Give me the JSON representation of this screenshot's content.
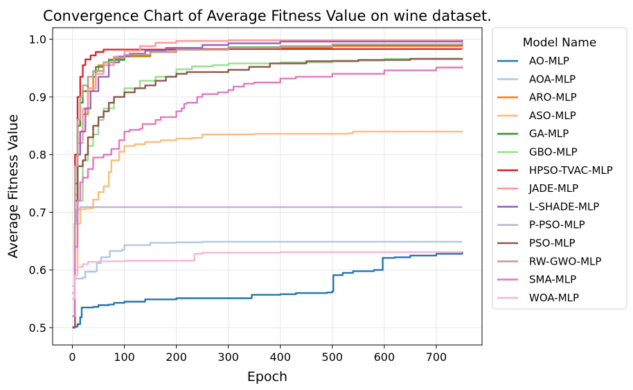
{
  "chart_data": {
    "type": "line",
    "title": "Convergence Chart of Average Fitness Value on wine dataset.",
    "xlabel": "Epoch",
    "ylabel": "Average Fitness Value",
    "xlim": [
      -38,
      788
    ],
    "ylim": [
      0.47,
      1.02
    ],
    "xticks": [
      0,
      100,
      200,
      300,
      400,
      500,
      600,
      700
    ],
    "yticks": [
      0.5,
      0.6,
      0.7,
      0.8,
      0.9,
      1.0
    ],
    "ytick_labels": [
      "0.5",
      "0.6",
      "0.7",
      "0.8",
      "0.9",
      "1.0"
    ],
    "grid": true,
    "legend": {
      "title": "Model Name",
      "position": "outside-right"
    },
    "series": [
      {
        "name": "AO-MLP",
        "color": "#1f77b4",
        "points": [
          [
            0,
            0.501
          ],
          [
            5,
            0.502
          ],
          [
            10,
            0.506
          ],
          [
            15,
            0.518
          ],
          [
            18,
            0.535
          ],
          [
            40,
            0.536
          ],
          [
            50,
            0.539
          ],
          [
            70,
            0.54
          ],
          [
            80,
            0.543
          ],
          [
            100,
            0.545
          ],
          [
            140,
            0.549
          ],
          [
            200,
            0.551
          ],
          [
            250,
            0.551
          ],
          [
            340,
            0.551
          ],
          [
            345,
            0.557
          ],
          [
            400,
            0.558
          ],
          [
            430,
            0.56
          ],
          [
            490,
            0.561
          ],
          [
            500,
            0.563
          ],
          [
            502,
            0.591
          ],
          [
            520,
            0.595
          ],
          [
            540,
            0.598
          ],
          [
            580,
            0.6
          ],
          [
            595,
            0.6
          ],
          [
            597,
            0.621
          ],
          [
            620,
            0.622
          ],
          [
            650,
            0.625
          ],
          [
            700,
            0.628
          ],
          [
            750,
            0.632
          ]
        ]
      },
      {
        "name": "AOA-MLP",
        "color": "#aec7e8",
        "points": [
          [
            0,
            0.572
          ],
          [
            5,
            0.585
          ],
          [
            20,
            0.587
          ],
          [
            25,
            0.597
          ],
          [
            45,
            0.598
          ],
          [
            47,
            0.612
          ],
          [
            55,
            0.622
          ],
          [
            70,
            0.623
          ],
          [
            72,
            0.633
          ],
          [
            95,
            0.635
          ],
          [
            100,
            0.643
          ],
          [
            150,
            0.647
          ],
          [
            200,
            0.648
          ],
          [
            250,
            0.649
          ],
          [
            750,
            0.649
          ]
        ]
      },
      {
        "name": "ARO-MLP",
        "color": "#ff7f0e",
        "points": [
          [
            0,
            0.55
          ],
          [
            5,
            0.7
          ],
          [
            10,
            0.8
          ],
          [
            15,
            0.84
          ],
          [
            20,
            0.87
          ],
          [
            30,
            0.91
          ],
          [
            40,
            0.945
          ],
          [
            50,
            0.955
          ],
          [
            70,
            0.965
          ],
          [
            100,
            0.97
          ],
          [
            150,
            0.978
          ],
          [
            200,
            0.982
          ],
          [
            300,
            0.985
          ],
          [
            500,
            0.988
          ],
          [
            750,
            0.99
          ]
        ]
      },
      {
        "name": "ASO-MLP",
        "color": "#ffbb78",
        "points": [
          [
            0,
            0.5
          ],
          [
            5,
            0.6
          ],
          [
            10,
            0.68
          ],
          [
            15,
            0.705
          ],
          [
            25,
            0.707
          ],
          [
            40,
            0.722
          ],
          [
            50,
            0.735
          ],
          [
            60,
            0.745
          ],
          [
            70,
            0.77
          ],
          [
            75,
            0.79
          ],
          [
            90,
            0.805
          ],
          [
            100,
            0.815
          ],
          [
            120,
            0.818
          ],
          [
            140,
            0.822
          ],
          [
            170,
            0.825
          ],
          [
            200,
            0.828
          ],
          [
            230,
            0.829
          ],
          [
            250,
            0.835
          ],
          [
            350,
            0.836
          ],
          [
            400,
            0.836
          ],
          [
            530,
            0.837
          ],
          [
            540,
            0.84
          ],
          [
            750,
            0.841
          ]
        ]
      },
      {
        "name": "GA-MLP",
        "color": "#2ca02c",
        "points": [
          [
            0,
            0.56
          ],
          [
            5,
            0.75
          ],
          [
            10,
            0.85
          ],
          [
            15,
            0.89
          ],
          [
            20,
            0.91
          ],
          [
            30,
            0.935
          ],
          [
            45,
            0.952
          ],
          [
            60,
            0.96
          ],
          [
            70,
            0.964
          ],
          [
            100,
            0.972
          ],
          [
            150,
            0.978
          ],
          [
            200,
            0.982
          ],
          [
            300,
            0.986
          ],
          [
            400,
            0.988
          ],
          [
            500,
            0.99
          ],
          [
            750,
            0.993
          ]
        ]
      },
      {
        "name": "GBO-MLP",
        "color": "#98df8a",
        "points": [
          [
            0,
            0.52
          ],
          [
            5,
            0.64
          ],
          [
            10,
            0.72
          ],
          [
            20,
            0.79
          ],
          [
            30,
            0.815
          ],
          [
            40,
            0.835
          ],
          [
            50,
            0.86
          ],
          [
            60,
            0.88
          ],
          [
            80,
            0.9
          ],
          [
            100,
            0.915
          ],
          [
            130,
            0.928
          ],
          [
            160,
            0.935
          ],
          [
            200,
            0.948
          ],
          [
            230,
            0.953
          ],
          [
            270,
            0.955
          ],
          [
            300,
            0.958
          ],
          [
            400,
            0.96
          ],
          [
            500,
            0.963
          ],
          [
            600,
            0.966
          ],
          [
            750,
            0.967
          ]
        ]
      },
      {
        "name": "HPSO-TVAC-MLP",
        "color": "#d62728",
        "points": [
          [
            0,
            0.52
          ],
          [
            5,
            0.8
          ],
          [
            10,
            0.9
          ],
          [
            15,
            0.935
          ],
          [
            20,
            0.955
          ],
          [
            25,
            0.965
          ],
          [
            35,
            0.972
          ],
          [
            45,
            0.978
          ],
          [
            60,
            0.982
          ],
          [
            100,
            0.982
          ],
          [
            200,
            0.983
          ],
          [
            400,
            0.983
          ],
          [
            750,
            0.983
          ]
        ]
      },
      {
        "name": "JADE-MLP",
        "color": "#ff9896",
        "points": [
          [
            0,
            0.56
          ],
          [
            5,
            0.73
          ],
          [
            10,
            0.82
          ],
          [
            20,
            0.88
          ],
          [
            30,
            0.915
          ],
          [
            45,
            0.94
          ],
          [
            60,
            0.955
          ],
          [
            80,
            0.97
          ],
          [
            100,
            0.98
          ],
          [
            130,
            0.988
          ],
          [
            160,
            0.994
          ],
          [
            200,
            0.997
          ],
          [
            300,
            0.998
          ],
          [
            750,
            0.998
          ]
        ]
      },
      {
        "name": "L-SHADE-MLP",
        "color": "#9467bd",
        "points": [
          [
            0,
            0.52
          ],
          [
            5,
            0.7
          ],
          [
            10,
            0.8
          ],
          [
            15,
            0.84
          ],
          [
            25,
            0.88
          ],
          [
            35,
            0.91
          ],
          [
            50,
            0.935
          ],
          [
            70,
            0.96
          ],
          [
            90,
            0.97
          ],
          [
            110,
            0.975
          ],
          [
            140,
            0.98
          ],
          [
            180,
            0.985
          ],
          [
            250,
            0.99
          ],
          [
            300,
            0.993
          ],
          [
            400,
            0.996
          ],
          [
            750,
            0.999
          ]
        ]
      },
      {
        "name": "P-PSO-MLP",
        "color": "#c5b0d5",
        "points": [
          [
            0,
            0.52
          ],
          [
            4,
            0.68
          ],
          [
            8,
            0.705
          ],
          [
            15,
            0.709
          ],
          [
            750,
            0.709
          ]
        ]
      },
      {
        "name": "PSO-MLP",
        "color": "#8c564b",
        "points": [
          [
            0,
            0.5
          ],
          [
            5,
            0.72
          ],
          [
            10,
            0.78
          ],
          [
            20,
            0.79
          ],
          [
            25,
            0.8
          ],
          [
            30,
            0.83
          ],
          [
            40,
            0.85
          ],
          [
            50,
            0.865
          ],
          [
            60,
            0.875
          ],
          [
            70,
            0.89
          ],
          [
            80,
            0.9
          ],
          [
            100,
            0.908
          ],
          [
            120,
            0.915
          ],
          [
            140,
            0.92
          ],
          [
            160,
            0.928
          ],
          [
            180,
            0.935
          ],
          [
            200,
            0.94
          ],
          [
            220,
            0.943
          ],
          [
            300,
            0.947
          ],
          [
            340,
            0.952
          ],
          [
            380,
            0.958
          ],
          [
            450,
            0.962
          ],
          [
            550,
            0.964
          ],
          [
            650,
            0.966
          ],
          [
            750,
            0.967
          ]
        ]
      },
      {
        "name": "RW-GWO-MLP",
        "color": "#c49c94",
        "points": [
          [
            0,
            0.55
          ],
          [
            5,
            0.78
          ],
          [
            10,
            0.86
          ],
          [
            15,
            0.9
          ],
          [
            20,
            0.92
          ],
          [
            30,
            0.935
          ],
          [
            40,
            0.945
          ],
          [
            60,
            0.96
          ],
          [
            80,
            0.968
          ],
          [
            100,
            0.973
          ],
          [
            150,
            0.978
          ],
          [
            200,
            0.982
          ],
          [
            300,
            0.985
          ],
          [
            400,
            0.988
          ],
          [
            500,
            0.991
          ],
          [
            750,
            0.994
          ]
        ]
      },
      {
        "name": "SMA-MLP",
        "color": "#e377c2",
        "points": [
          [
            0,
            0.52
          ],
          [
            5,
            0.64
          ],
          [
            10,
            0.72
          ],
          [
            15,
            0.752
          ],
          [
            20,
            0.76
          ],
          [
            30,
            0.775
          ],
          [
            40,
            0.795
          ],
          [
            60,
            0.8
          ],
          [
            75,
            0.81
          ],
          [
            90,
            0.825
          ],
          [
            100,
            0.84
          ],
          [
            110,
            0.843
          ],
          [
            130,
            0.845
          ],
          [
            135,
            0.853
          ],
          [
            160,
            0.86
          ],
          [
            170,
            0.865
          ],
          [
            200,
            0.875
          ],
          [
            210,
            0.88
          ],
          [
            215,
            0.888
          ],
          [
            220,
            0.89
          ],
          [
            240,
            0.9
          ],
          [
            250,
            0.905
          ],
          [
            280,
            0.908
          ],
          [
            300,
            0.912
          ],
          [
            310,
            0.918
          ],
          [
            330,
            0.923
          ],
          [
            350,
            0.925
          ],
          [
            400,
            0.932
          ],
          [
            430,
            0.935
          ],
          [
            500,
            0.94
          ],
          [
            600,
            0.946
          ],
          [
            700,
            0.951
          ],
          [
            750,
            0.953
          ]
        ]
      },
      {
        "name": "WOA-MLP",
        "color": "#f7b6d2",
        "points": [
          [
            0,
            0.55
          ],
          [
            5,
            0.59
          ],
          [
            10,
            0.605
          ],
          [
            20,
            0.61
          ],
          [
            30,
            0.614
          ],
          [
            50,
            0.615
          ],
          [
            100,
            0.616
          ],
          [
            230,
            0.616
          ],
          [
            235,
            0.628
          ],
          [
            250,
            0.63
          ],
          [
            400,
            0.631
          ],
          [
            750,
            0.631
          ]
        ]
      }
    ]
  }
}
